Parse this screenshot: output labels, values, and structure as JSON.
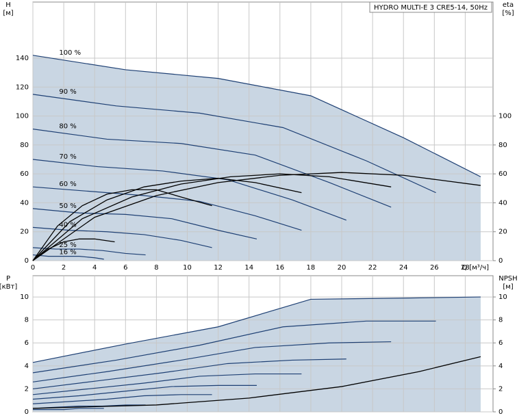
{
  "chart_data": [
    {
      "type": "line",
      "title": "HYDRO MULTI-E 3 CRE5-14, 50Hz",
      "ylabel": "H",
      "yunit": "[м]",
      "y2label": "eta",
      "y2unit": "[%]",
      "xlabel": "Q [м³/ч]",
      "xlim": [
        0,
        29.8
      ],
      "xticks": [
        0,
        2,
        4,
        6,
        8,
        10,
        12,
        14,
        16,
        18,
        20,
        22,
        24,
        26,
        28
      ],
      "ylim": [
        0,
        178.8
      ],
      "yticks": [
        0,
        20,
        40,
        60,
        80,
        100,
        120,
        140
      ],
      "y2lim": [
        0,
        178.8
      ],
      "y2ticks": [
        0,
        20,
        40,
        60,
        80,
        100
      ],
      "grid": true,
      "area_color": "#c9d6e3",
      "series": [
        {
          "name": "100 %",
          "color": "#1d3f73",
          "x": [
            0,
            6,
            12,
            18,
            24,
            29
          ],
          "values": [
            142,
            132,
            126,
            114,
            85,
            58
          ]
        },
        {
          "name": "90 %",
          "color": "#1d3f73",
          "x": [
            0,
            5.4,
            10.8,
            16.2,
            21.6,
            26.1
          ],
          "values": [
            115,
            107,
            102,
            92,
            69,
            47
          ]
        },
        {
          "name": "80 %",
          "color": "#1d3f73",
          "x": [
            0,
            4.8,
            9.6,
            14.4,
            19.2,
            23.2
          ],
          "values": [
            91,
            84,
            81,
            73,
            54,
            37
          ]
        },
        {
          "name": "70 %",
          "color": "#1d3f73",
          "x": [
            0,
            4.2,
            8.4,
            12.6,
            16.8,
            20.3
          ],
          "values": [
            70,
            65,
            62,
            56,
            42,
            28
          ]
        },
        {
          "name": "60 %",
          "color": "#1d3f73",
          "x": [
            0,
            3.6,
            7.2,
            10.8,
            14.4,
            17.4
          ],
          "values": [
            51,
            48,
            45,
            41,
            31,
            21
          ]
        },
        {
          "name": "50 %",
          "color": "#1d3f73",
          "x": [
            0,
            3,
            6,
            9,
            12,
            14.5
          ],
          "values": [
            36,
            33,
            32,
            29,
            21,
            15
          ]
        },
        {
          "name": "40 %",
          "color": "#1d3f73",
          "x": [
            0,
            2.4,
            4.8,
            7.2,
            9.6,
            11.6
          ],
          "values": [
            23,
            21,
            20,
            18,
            14,
            9
          ]
        },
        {
          "name": "25 %",
          "color": "#1d3f73",
          "x": [
            0,
            1.5,
            3,
            4.5,
            6,
            7.3
          ],
          "values": [
            9,
            8,
            8,
            7,
            5,
            4
          ]
        },
        {
          "name": "16 %",
          "color": "#1d3f73",
          "x": [
            0,
            1,
            2,
            3,
            4,
            4.6
          ],
          "values": [
            4,
            3,
            3,
            3,
            2,
            1
          ]
        },
        {
          "axis": "y2",
          "color": "#000000",
          "x": [
            0,
            4,
            8,
            12,
            16,
            20,
            24,
            29
          ],
          "values": [
            0,
            30,
            45,
            54,
            59,
            61,
            59,
            52
          ]
        },
        {
          "axis": "y2",
          "color": "#000000",
          "x": [
            0,
            3.2,
            6.4,
            9.6,
            12.8,
            16,
            19.2,
            23.2
          ],
          "values": [
            0,
            29,
            44,
            53,
            58,
            60,
            58,
            51
          ]
        },
        {
          "axis": "y2",
          "color": "#000000",
          "x": [
            0,
            2.4,
            4.8,
            7.2,
            9.6,
            12,
            14.4,
            17.4
          ],
          "values": [
            0,
            27,
            42,
            51,
            55,
            57,
            54,
            47
          ]
        },
        {
          "axis": "y2",
          "color": "#000000",
          "x": [
            0,
            1.6,
            3.2,
            4.8,
            6.4,
            8,
            9.6,
            11.6
          ],
          "values": [
            0,
            24,
            38,
            46,
            49,
            49,
            44,
            38
          ]
        },
        {
          "axis": "y2",
          "color": "#000000",
          "x": [
            0,
            1,
            2,
            3,
            4,
            5.3
          ],
          "values": [
            0,
            8,
            13,
            15,
            15,
            13
          ]
        }
      ]
    },
    {
      "type": "line",
      "ylabel": "P",
      "yunit": "[кВт]",
      "y2label": "NPSH",
      "y2unit": "[м]",
      "xlim": [
        0,
        29.8
      ],
      "xticks": [
        0,
        2,
        4,
        6,
        8,
        10,
        12,
        14,
        16,
        18,
        20,
        22,
        24,
        26,
        28
      ],
      "xtick_labels": false,
      "ylim": [
        0,
        11.85
      ],
      "yticks": [
        0,
        2,
        4,
        6,
        8,
        10
      ],
      "y2lim": [
        0,
        11.85
      ],
      "y2ticks": [
        0,
        2,
        4,
        6,
        8,
        10
      ],
      "grid": true,
      "area_color": "#c9d6e3",
      "series": [
        {
          "color": "#1d3f73",
          "x": [
            0,
            6,
            12,
            18,
            24,
            29
          ],
          "values": [
            4.3,
            5.9,
            7.4,
            9.8,
            9.9,
            10
          ]
        },
        {
          "color": "#1d3f73",
          "x": [
            0,
            5.4,
            10.8,
            16.2,
            21.6,
            26.1
          ],
          "values": [
            3.4,
            4.5,
            5.8,
            7.4,
            7.9,
            7.9
          ]
        },
        {
          "color": "#1d3f73",
          "x": [
            0,
            4.8,
            9.6,
            14.4,
            19.2,
            23.2
          ],
          "values": [
            2.6,
            3.5,
            4.5,
            5.6,
            6,
            6.1
          ]
        },
        {
          "color": "#1d3f73",
          "x": [
            0,
            4.2,
            8.4,
            12.6,
            16.8,
            20.3
          ],
          "values": [
            2,
            2.7,
            3.4,
            4.2,
            4.5,
            4.6
          ]
        },
        {
          "color": "#1d3f73",
          "x": [
            0,
            3.6,
            7.2,
            10.8,
            14.4,
            17.4
          ],
          "values": [
            1.5,
            2,
            2.5,
            3.1,
            3.3,
            3.3
          ]
        },
        {
          "color": "#1d3f73",
          "x": [
            0,
            3,
            6,
            9,
            12,
            14.5
          ],
          "values": [
            1.1,
            1.4,
            1.8,
            2.2,
            2.3,
            2.3
          ]
        },
        {
          "color": "#1d3f73",
          "x": [
            0,
            2.4,
            4.8,
            7.2,
            9.6,
            11.6
          ],
          "values": [
            0.7,
            0.9,
            1.1,
            1.4,
            1.5,
            1.5
          ]
        },
        {
          "color": "#1d3f73",
          "x": [
            0,
            1.5,
            3,
            4.5,
            6,
            7.3
          ],
          "values": [
            0.3,
            0.4,
            0.5,
            0.5,
            0.6,
            0.6
          ]
        },
        {
          "color": "#1d3f73",
          "x": [
            0,
            1,
            2,
            3,
            4,
            4.6
          ],
          "values": [
            0.2,
            0.2,
            0.2,
            0.3,
            0.3,
            0.3
          ]
        },
        {
          "axis": "y2",
          "color": "#000000",
          "x": [
            0,
            8,
            14,
            20,
            25,
            29
          ],
          "values": [
            0.3,
            0.6,
            1.2,
            2.2,
            3.5,
            4.8
          ]
        }
      ]
    }
  ]
}
